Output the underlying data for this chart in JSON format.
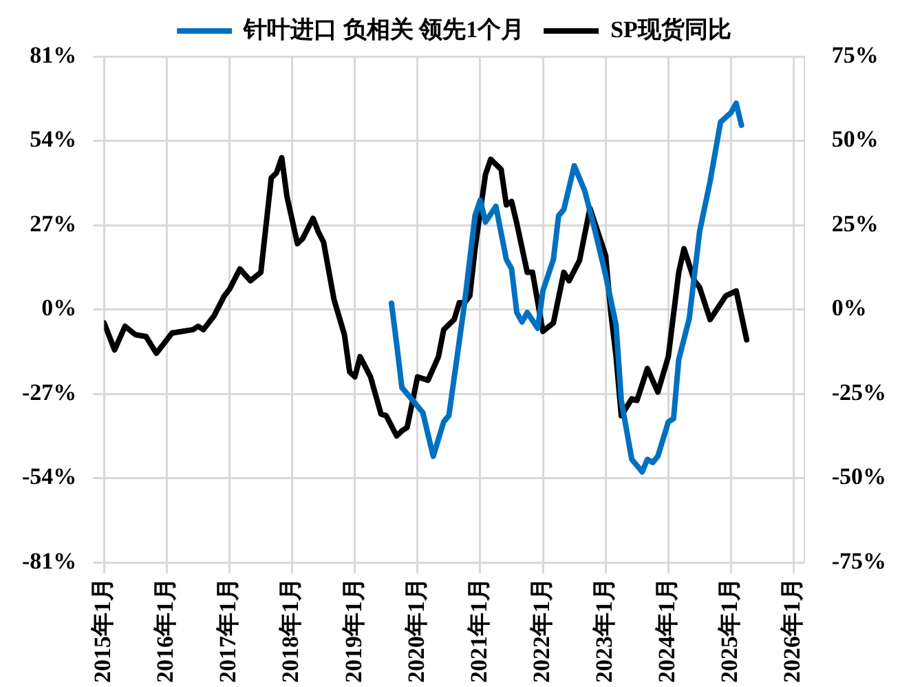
{
  "chart_data": {
    "type": "line",
    "legend": "top",
    "grid": true,
    "marker": "none",
    "line_style": "solid",
    "xlim": [
      "2015-01",
      "2026-03"
    ],
    "xticks": [
      {
        "value": "2015-01",
        "label": "2015年1月"
      },
      {
        "value": "2016-01",
        "label": "2016年1月"
      },
      {
        "value": "2017-01",
        "label": "2017年1月"
      },
      {
        "value": "2018-01",
        "label": "2018年1月"
      },
      {
        "value": "2019-01",
        "label": "2019年1月"
      },
      {
        "value": "2020-01",
        "label": "2020年1月"
      },
      {
        "value": "2021-01",
        "label": "2021年1月"
      },
      {
        "value": "2022-01",
        "label": "2022年1月"
      },
      {
        "value": "2023-01",
        "label": "2023年1月"
      },
      {
        "value": "2024-01",
        "label": "2024年1月"
      },
      {
        "value": "2025-01",
        "label": "2025年1月"
      },
      {
        "value": "2026-01",
        "label": "2026年1月"
      }
    ],
    "ylim": [
      -81,
      81
    ],
    "yticks": [
      {
        "value": -81,
        "label": "-81%"
      },
      {
        "value": -54,
        "label": "-54%"
      },
      {
        "value": -27,
        "label": "-27%"
      },
      {
        "value": 0,
        "label": "0%"
      },
      {
        "value": 27,
        "label": "27%"
      },
      {
        "value": 54,
        "label": "54%"
      },
      {
        "value": 81,
        "label": "81%"
      }
    ],
    "y2lim": [
      -75,
      75
    ],
    "y2ticks": [
      {
        "value": -75,
        "label": "-75%"
      },
      {
        "value": -50,
        "label": "-50%"
      },
      {
        "value": -25,
        "label": "-25%"
      },
      {
        "value": 0,
        "label": "0%"
      },
      {
        "value": 25,
        "label": "25%"
      },
      {
        "value": 50,
        "label": "50%"
      },
      {
        "value": 75,
        "label": "75%"
      }
    ],
    "series": [
      {
        "name": "针叶进口 负相关 领先1个月",
        "color": "#0070c0",
        "axis": "y",
        "x": [
          "2019-08",
          "2019-09",
          "2019-10",
          "2020-02",
          "2020-04",
          "2020-06",
          "2020-07",
          "2020-09",
          "2020-10",
          "2020-12",
          "2021-01",
          "2021-02",
          "2021-04",
          "2021-06",
          "2021-07",
          "2021-08",
          "2021-09",
          "2021-10",
          "2021-12",
          "2022-01",
          "2022-03",
          "2022-04",
          "2022-05",
          "2022-07",
          "2022-09",
          "2022-11",
          "2023-01",
          "2023-03",
          "2023-04",
          "2023-06",
          "2023-08",
          "2023-09",
          "2023-10",
          "2023-11",
          "2024-01",
          "2024-02",
          "2024-03",
          "2024-05",
          "2024-07",
          "2024-09",
          "2024-11",
          "2025-01",
          "2025-02",
          "2025-03"
        ],
        "values": [
          2,
          -11,
          -25,
          -33,
          -47,
          -36,
          -34,
          -10,
          2,
          30,
          35,
          28,
          33,
          16,
          13,
          -1,
          -4,
          -1,
          -6,
          6,
          16,
          30,
          32,
          46,
          38,
          25,
          11,
          -5,
          -29,
          -48,
          -52,
          -48,
          -49,
          -47,
          -36,
          -35,
          -16,
          -3,
          25,
          41,
          60,
          63,
          66,
          59
        ]
      },
      {
        "name": "SP现货同比",
        "color": "#000000",
        "axis": "y2",
        "x": [
          "2015-01",
          "2015-03",
          "2015-05",
          "2015-07",
          "2015-09",
          "2015-11",
          "2016-02",
          "2016-06",
          "2016-07",
          "2016-08",
          "2016-10",
          "2016-12",
          "2017-01",
          "2017-03",
          "2017-05",
          "2017-07",
          "2017-09",
          "2017-10",
          "2017-11",
          "2017-12",
          "2018-02",
          "2018-03",
          "2018-05",
          "2018-06",
          "2018-07",
          "2018-09",
          "2018-11",
          "2018-12",
          "2019-01",
          "2019-02",
          "2019-04",
          "2019-06",
          "2019-07",
          "2019-09",
          "2019-10",
          "2019-11",
          "2020-01",
          "2020-03",
          "2020-05",
          "2020-06",
          "2020-08",
          "2020-09",
          "2020-10",
          "2020-11",
          "2020-12",
          "2021-02",
          "2021-03",
          "2021-05",
          "2021-06",
          "2021-07",
          "2021-08",
          "2021-10",
          "2021-11",
          "2022-01",
          "2022-03",
          "2022-05",
          "2022-06",
          "2022-08",
          "2022-10",
          "2023-01",
          "2023-02",
          "2023-03",
          "2023-04",
          "2023-06",
          "2023-07",
          "2023-09",
          "2023-11",
          "2024-01",
          "2024-03",
          "2024-04",
          "2024-06",
          "2024-07",
          "2024-09",
          "2024-12",
          "2025-02",
          "2025-04"
        ],
        "values": [
          -4,
          -12,
          -5,
          -7.5,
          -8,
          -13,
          -7,
          -6,
          -5,
          -6,
          -2,
          4,
          6,
          12,
          8.5,
          11,
          39,
          40.5,
          45,
          33.5,
          19.5,
          21,
          27,
          23,
          20,
          3,
          -7.5,
          -18.5,
          -20,
          -14,
          -20,
          -31,
          -31.5,
          -37.5,
          -36,
          -35,
          -20,
          -21,
          -14,
          -6,
          -3,
          2,
          2,
          4,
          18,
          40,
          44.5,
          41.5,
          31,
          32,
          25.5,
          11,
          11,
          -6.5,
          -4,
          11,
          8.5,
          14.5,
          30,
          16,
          -1,
          -14,
          -31.5,
          -26.5,
          -27,
          -17.5,
          -24.5,
          -14,
          11,
          18,
          8.5,
          6.5,
          -3,
          4,
          5.5,
          -9
        ]
      }
    ]
  }
}
